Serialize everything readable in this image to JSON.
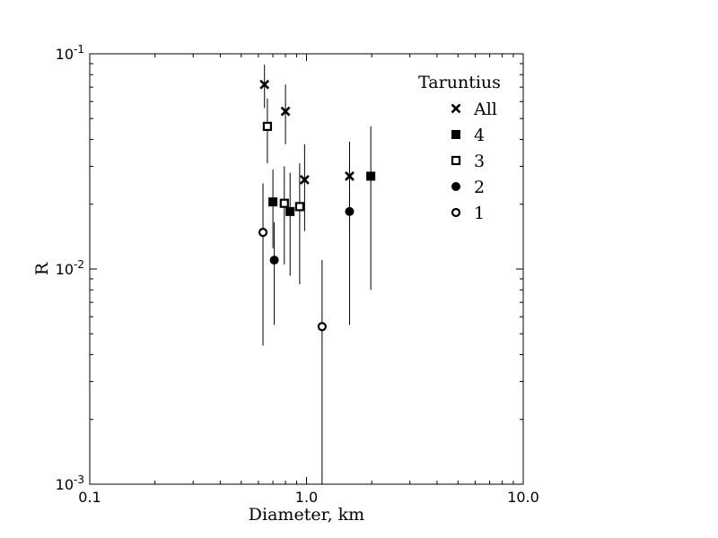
{
  "chart_data": {
    "type": "scatter",
    "xlabel": "Diameter, km",
    "ylabel": "R",
    "xscale": "log",
    "yscale": "log",
    "xlim": [
      0.1,
      10.0
    ],
    "ylim": [
      0.001,
      0.1
    ],
    "xticks": [
      {
        "value": 0.1,
        "label": "0.1"
      },
      {
        "value": 1.0,
        "label": "1.0"
      },
      {
        "value": 10.0,
        "label": "10.0"
      }
    ],
    "yticks": [
      {
        "value": 0.001,
        "base": "10",
        "exp": "-3"
      },
      {
        "value": 0.01,
        "base": "10",
        "exp": "-2"
      },
      {
        "value": 0.1,
        "base": "10",
        "exp": "-1"
      }
    ],
    "grid": false,
    "legend": {
      "title": "Taruntius",
      "placement": "top-right",
      "entries": [
        {
          "name": "All",
          "marker": "x"
        },
        {
          "name": "4",
          "marker": "square-filled"
        },
        {
          "name": "3",
          "marker": "square-open"
        },
        {
          "name": "2",
          "marker": "circle-filled"
        },
        {
          "name": "1",
          "marker": "circle-open"
        }
      ]
    },
    "series": [
      {
        "name": "All",
        "marker": "x",
        "points": [
          {
            "x": 0.64,
            "y": 0.072,
            "ylo": 0.056,
            "yhi": 0.089
          },
          {
            "x": 0.8,
            "y": 0.054,
            "ylo": 0.038,
            "yhi": 0.072
          },
          {
            "x": 0.98,
            "y": 0.026,
            "ylo": 0.015,
            "yhi": 0.038
          },
          {
            "x": 1.58,
            "y": 0.027,
            "ylo": 0.016,
            "yhi": 0.039
          }
        ]
      },
      {
        "name": "4",
        "marker": "square-filled",
        "points": [
          {
            "x": 0.7,
            "y": 0.0205,
            "ylo": 0.0125,
            "yhi": 0.029
          },
          {
            "x": 0.84,
            "y": 0.0185,
            "ylo": 0.0093,
            "yhi": 0.028
          },
          {
            "x": 1.98,
            "y": 0.027,
            "ylo": 0.008,
            "yhi": 0.046
          }
        ]
      },
      {
        "name": "3",
        "marker": "square-open",
        "points": [
          {
            "x": 0.66,
            "y": 0.046,
            "ylo": 0.031,
            "yhi": 0.062
          },
          {
            "x": 0.79,
            "y": 0.0202,
            "ylo": 0.0105,
            "yhi": 0.03
          },
          {
            "x": 0.93,
            "y": 0.0195,
            "ylo": 0.0085,
            "yhi": 0.031
          }
        ]
      },
      {
        "name": "2",
        "marker": "circle-filled",
        "points": [
          {
            "x": 0.71,
            "y": 0.011,
            "ylo": 0.0055,
            "yhi": 0.0165
          },
          {
            "x": 1.58,
            "y": 0.0185,
            "ylo": 0.0055,
            "yhi": 0.032
          }
        ]
      },
      {
        "name": "1",
        "marker": "circle-open",
        "points": [
          {
            "x": 0.63,
            "y": 0.0148,
            "ylo": 0.0044,
            "yhi": 0.025
          },
          {
            "x": 1.18,
            "y": 0.0054,
            "ylo": 0.001,
            "yhi": 0.011
          }
        ]
      }
    ]
  }
}
